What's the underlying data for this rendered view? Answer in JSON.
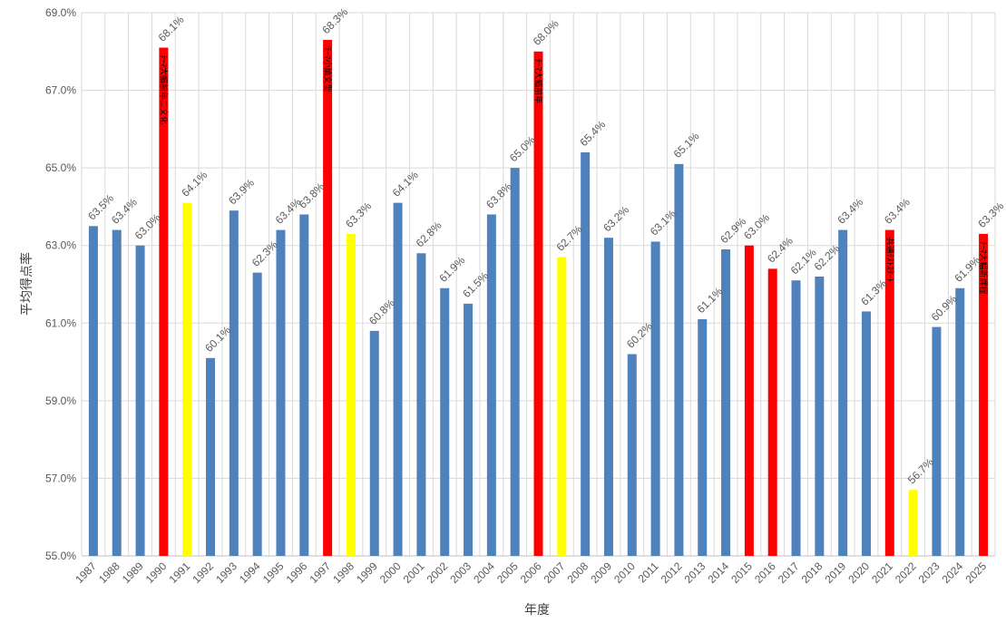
{
  "chart_data": {
    "type": "bar",
    "xlabel": "年度",
    "ylabel": "平均得点率",
    "ylim": [
      55.0,
      69.0
    ],
    "yticks": [
      "55.0%",
      "57.0%",
      "59.0%",
      "61.0%",
      "63.0%",
      "65.0%",
      "67.0%",
      "69.0%"
    ],
    "grid": "horizontal",
    "colors": {
      "normal": "#4F81BD",
      "red": "#FF0000",
      "yellow": "#FFFF00"
    },
    "categories": [
      "1987",
      "1988",
      "1989",
      "1990",
      "1991",
      "1992",
      "1993",
      "1994",
      "1995",
      "1996",
      "1997",
      "1998",
      "1999",
      "2000",
      "2001",
      "2002",
      "2003",
      "2004",
      "2005",
      "2006",
      "2007",
      "2008",
      "2009",
      "2010",
      "2011",
      "2012",
      "2013",
      "2014",
      "2015",
      "2016",
      "2017",
      "2018",
      "2019",
      "2020",
      "2021",
      "2022",
      "2023",
      "2024",
      "2025"
    ],
    "values": [
      63.5,
      63.4,
      63.0,
      68.1,
      64.1,
      60.1,
      63.9,
      62.3,
      63.4,
      63.8,
      68.3,
      63.3,
      60.8,
      64.1,
      62.8,
      61.9,
      61.5,
      63.8,
      65.0,
      68.0,
      62.7,
      65.4,
      63.2,
      60.2,
      63.1,
      65.1,
      61.1,
      62.9,
      63.0,
      62.4,
      62.1,
      62.2,
      63.4,
      61.3,
      63.4,
      56.7,
      60.9,
      61.9,
      63.3
    ],
    "data_labels": [
      "63.5%",
      "63.4%",
      "63.0%",
      "68.1%",
      "64.1%",
      "60.1%",
      "63.9%",
      "62.3%",
      "63.4%",
      "63.8%",
      "68.3%",
      "63.3%",
      "60.8%",
      "64.1%",
      "62.8%",
      "61.9%",
      "61.5%",
      "63.8%",
      "65.0%",
      "68.0%",
      "62.7%",
      "65.4%",
      "63.2%",
      "60.2%",
      "63.1%",
      "65.1%",
      "61.1%",
      "62.9%",
      "63.0%",
      "62.4%",
      "62.1%",
      "62.2%",
      "63.4%",
      "61.3%",
      "63.4%",
      "56.7%",
      "60.9%",
      "61.9%",
      "63.3%"
    ],
    "bar_colors": [
      "normal",
      "normal",
      "normal",
      "red",
      "yellow",
      "normal",
      "normal",
      "normal",
      "normal",
      "normal",
      "red",
      "yellow",
      "normal",
      "normal",
      "normal",
      "normal",
      "normal",
      "normal",
      "normal",
      "red",
      "yellow",
      "normal",
      "normal",
      "normal",
      "normal",
      "normal",
      "normal",
      "normal",
      "red",
      "red",
      "normal",
      "normal",
      "normal",
      "normal",
      "red",
      "yellow",
      "normal",
      "normal",
      "red"
    ],
    "annotations": [
      {
        "year": "1990",
        "text": "ﾃｰﾏ大幅前年二文化"
      },
      {
        "year": "1997",
        "text": "ﾃｰﾏ小論文型"
      },
      {
        "year": "2006",
        "text": "ﾃｰﾏ大幅前年"
      },
      {
        "year": "2021",
        "text": "共通ﾃｽﾄｽﾀｰﾄ"
      },
      {
        "year": "2025",
        "text": "ﾃｰﾏ大幅新課程"
      }
    ]
  }
}
